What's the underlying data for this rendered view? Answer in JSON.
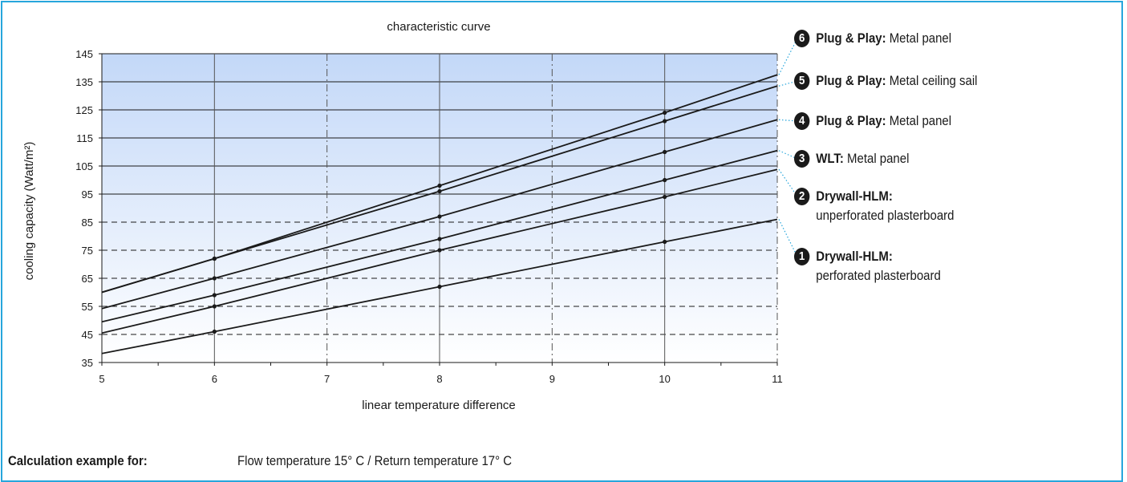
{
  "chart_data": {
    "type": "line",
    "title": "characteristic curve",
    "xlabel": "linear temperature difference",
    "ylabel": "cooling capacity (Watt/m²)",
    "xlim": [
      5,
      11
    ],
    "ylim": [
      35,
      145
    ],
    "x_ticks": [
      5,
      6,
      7,
      8,
      9,
      10,
      11
    ],
    "y_ticks": [
      35,
      45,
      55,
      65,
      75,
      85,
      95,
      105,
      115,
      125,
      135,
      145
    ],
    "grid": true,
    "marker_x": [
      6,
      8,
      10
    ],
    "series": [
      {
        "id": "1",
        "x": [
          5,
          6,
          8,
          10,
          11
        ],
        "y": [
          38.2,
          46,
          62,
          78,
          86
        ]
      },
      {
        "id": "2",
        "x": [
          5,
          6,
          8,
          10,
          11
        ],
        "y": [
          45.5,
          55,
          75,
          94,
          103.8
        ]
      },
      {
        "id": "3",
        "x": [
          5,
          6,
          8,
          10,
          11
        ],
        "y": [
          49.5,
          59,
          79,
          100,
          110.5
        ]
      },
      {
        "id": "4",
        "x": [
          5,
          6,
          8,
          10,
          11
        ],
        "y": [
          54.2,
          65,
          87,
          110,
          121.5
        ]
      },
      {
        "id": "5",
        "x": [
          5,
          6,
          8,
          10,
          11
        ],
        "y": [
          60,
          72,
          96,
          121,
          133.5
        ]
      },
      {
        "id": "6",
        "x": [
          5,
          6,
          8,
          10,
          11
        ],
        "y": [
          60,
          72,
          98,
          124,
          137.5
        ]
      }
    ]
  },
  "legend": [
    {
      "number": "6",
      "bold": "Plug & Play:",
      "text": " Metal panel",
      "sub": ""
    },
    {
      "number": "5",
      "bold": "Plug & Play:",
      "text": " Metal ceiling sail",
      "sub": ""
    },
    {
      "number": "4",
      "bold": "Plug & Play:",
      "text": " Metal panel",
      "sub": ""
    },
    {
      "number": "3",
      "bold": "WLT:",
      "text": " Metal panel",
      "sub": ""
    },
    {
      "number": "2",
      "bold": "Drywall-HLM:",
      "text": "",
      "sub": "unperforated plasterboard"
    },
    {
      "number": "1",
      "bold": "Drywall-HLM:",
      "text": "",
      "sub": "perforated plasterboard"
    }
  ],
  "footer": {
    "label": "Calculation example for:",
    "text": "Flow temperature 15° C / Return temperature 17° C"
  },
  "colors": {
    "frame": "#27a6dc",
    "gradient_top": "#c3d8f8",
    "gradient_bottom": "#ffffff",
    "line": "#1a1a1a",
    "leader": "#27a6dc"
  }
}
